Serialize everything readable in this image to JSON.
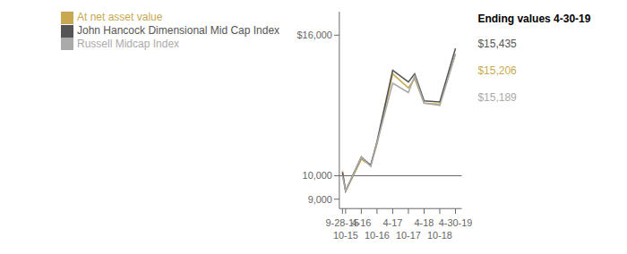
{
  "chart_data": {
    "type": "line",
    "x": [
      0,
      1,
      6,
      9,
      11,
      16,
      21,
      23,
      26,
      31,
      36
    ],
    "series": [
      {
        "name": "At net asset value",
        "color": "#c8a951",
        "values": [
          10200,
          9350,
          10700,
          10450,
          11350,
          14350,
          13750,
          14150,
          13100,
          13050,
          15206
        ]
      },
      {
        "name": "John Hancock Dimensional Mid Cap Index",
        "color": "#555555",
        "values": [
          10150,
          9350,
          10800,
          10450,
          11450,
          14500,
          14000,
          14350,
          13200,
          13150,
          15435
        ]
      },
      {
        "name": "Russell Midcap Index",
        "color": "#aaaaaa",
        "values": [
          10000,
          9350,
          10800,
          10400,
          11400,
          13950,
          13550,
          14250,
          13100,
          13000,
          15189
        ]
      }
    ],
    "xlim": [
      -1,
      38
    ],
    "xticks": [
      {
        "value": 0,
        "label": "9-28-15"
      },
      {
        "value": 1,
        "label": "10-15"
      },
      {
        "value": 6,
        "label": "4-16"
      },
      {
        "value": 11,
        "label": "10-16"
      },
      {
        "value": 16,
        "label": "4-17"
      },
      {
        "value": 21,
        "label": "10-17"
      },
      {
        "value": 26,
        "label": "4-18"
      },
      {
        "value": 31,
        "label": "10-18"
      },
      {
        "value": 36,
        "label": "4-30-19"
      }
    ],
    "ylim": [
      8600,
      17000
    ],
    "yticks": [
      {
        "value": 9000,
        "label": "9,000"
      },
      {
        "value": 10000,
        "label": "10,000"
      },
      {
        "value": 16000,
        "label": "$16,000"
      }
    ],
    "reference_line": {
      "y": 10000,
      "color": "#666666"
    },
    "legend": "upper left",
    "grid": false,
    "annotations": {
      "title": "Ending values 4-30-19",
      "items": [
        {
          "text": "$15,435",
          "series": "John Hancock Dimensional Mid Cap Index"
        },
        {
          "text": "$15,206",
          "series": "At net asset value"
        },
        {
          "text": "$15,189",
          "series": "Russell Midcap Index"
        }
      ]
    }
  }
}
